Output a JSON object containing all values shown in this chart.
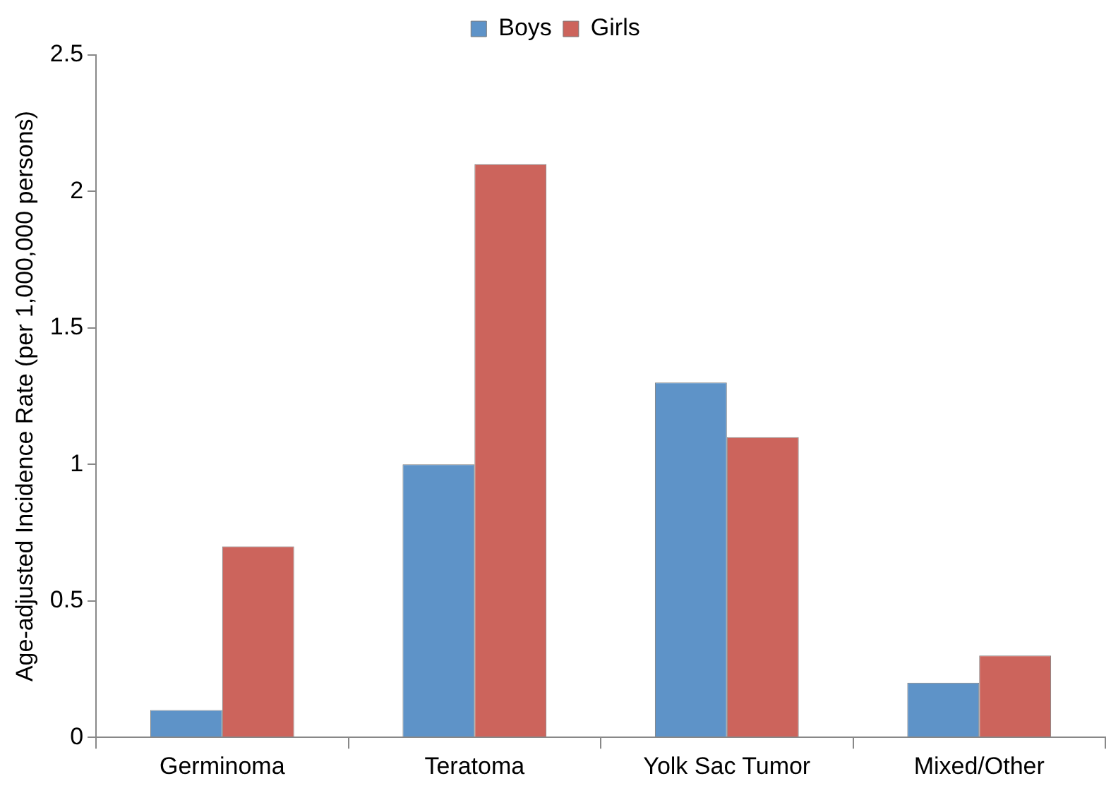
{
  "chart_data": {
    "type": "bar",
    "ylabel": "Age-adjusted Incidence Rate (per 1,000,000 persons)",
    "categories": [
      "Germinoma",
      "Teratoma",
      "Yolk Sac Tumor",
      "Mixed/Other"
    ],
    "series": [
      {
        "name": "Boys",
        "color": "#5e93c8",
        "values": [
          0.1,
          1.0,
          1.3,
          0.2
        ]
      },
      {
        "name": "Girls",
        "color": "#cc645c",
        "values": [
          0.7,
          2.1,
          1.1,
          0.3
        ]
      }
    ],
    "ylim": [
      0,
      2.5
    ],
    "yticks": [
      0,
      0.5,
      1,
      1.5,
      2,
      2.5
    ],
    "grid": false,
    "legend": "top"
  }
}
